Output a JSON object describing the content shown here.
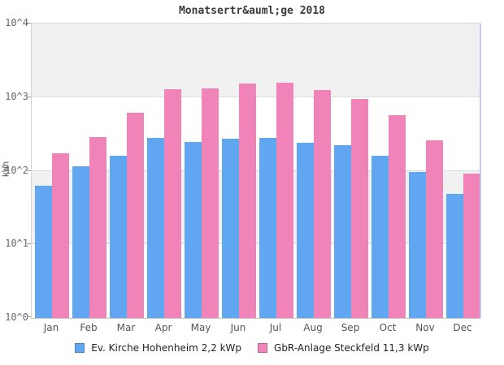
{
  "chart_data": {
    "type": "bar",
    "title": "Monatsertr&auml;ge 2018",
    "ylabel": "kWh",
    "xlabel": "",
    "y_scale": "log10",
    "ylim_exponents": [
      0,
      4
    ],
    "y_tick_labels": [
      "10^0",
      "10^1",
      "10^2",
      "10^3",
      "10^4"
    ],
    "grid": "horizontal",
    "plot_bands": "alternating gray/white per decade",
    "legend_position": "bottom",
    "categories": [
      "Jan",
      "Feb",
      "Mar",
      "Apr",
      "May",
      "Jun",
      "Jul",
      "Aug",
      "Sep",
      "Oct",
      "Nov",
      "Dec"
    ],
    "series": [
      {
        "name": "Ev. Kirche Hohenheim 2,2 kWp",
        "color": "#61a6f0",
        "border_color": "#4d7ebf",
        "values": [
          62,
          116,
          160,
          280,
          246,
          272,
          280,
          240,
          222,
          160,
          96,
          48
        ]
      },
      {
        "name": "GbR-Anlage Steckfeld 11,3 kWp",
        "color": "#f083b8",
        "border_color": "#bf5f93",
        "values": [
          172,
          290,
          610,
          1280,
          1310,
          1530,
          1560,
          1250,
          950,
          570,
          260,
          92
        ]
      }
    ]
  },
  "colors": {
    "band_gray": "#f1f1f1",
    "gridline": "#dcdcdc",
    "right_axis_border": "#c8c8ea",
    "tick_text": "#666666",
    "month_text": "#555555",
    "title_text": "#3a3a3a"
  }
}
